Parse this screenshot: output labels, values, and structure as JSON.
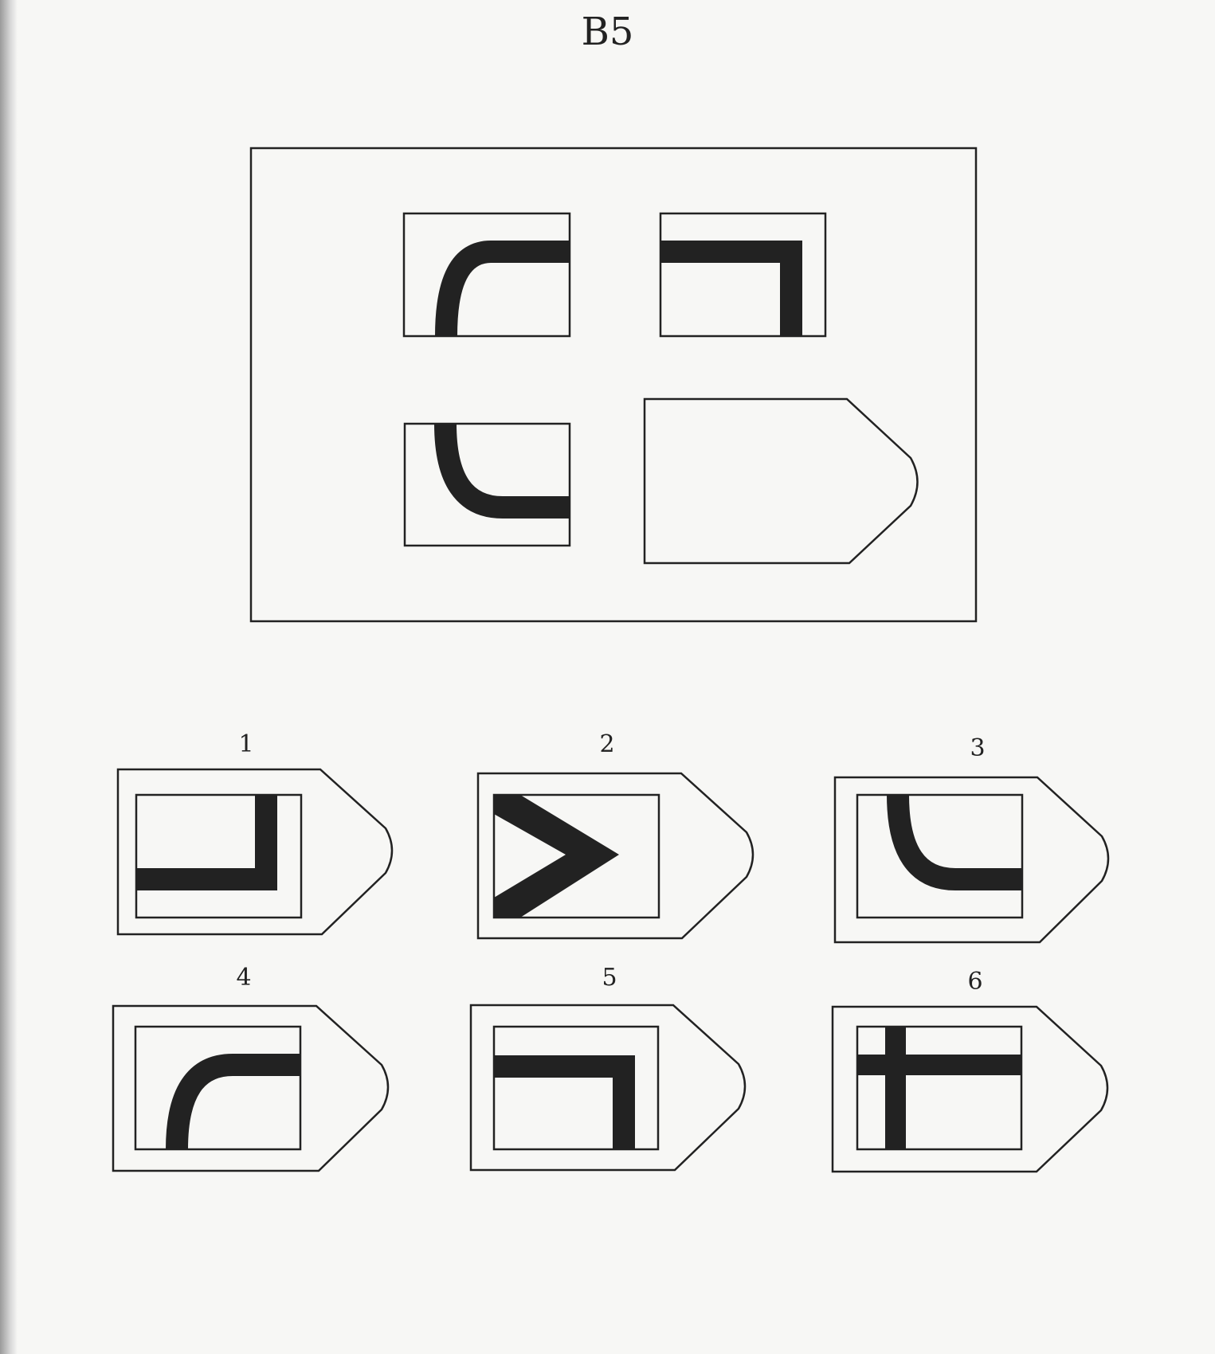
{
  "title": "B5",
  "matrix": {
    "cells": [
      "arc-top-left",
      "corner-top-right",
      "arc-bottom-left",
      "missing"
    ]
  },
  "options": [
    {
      "label": "1",
      "figure": "corner-bottom-right"
    },
    {
      "label": "2",
      "figure": "chevron-right"
    },
    {
      "label": "3",
      "figure": "arc-bottom-right"
    },
    {
      "label": "4",
      "figure": "arc-top-right"
    },
    {
      "label": "5",
      "figure": "corner-top-right"
    },
    {
      "label": "6",
      "figure": "cross"
    }
  ]
}
